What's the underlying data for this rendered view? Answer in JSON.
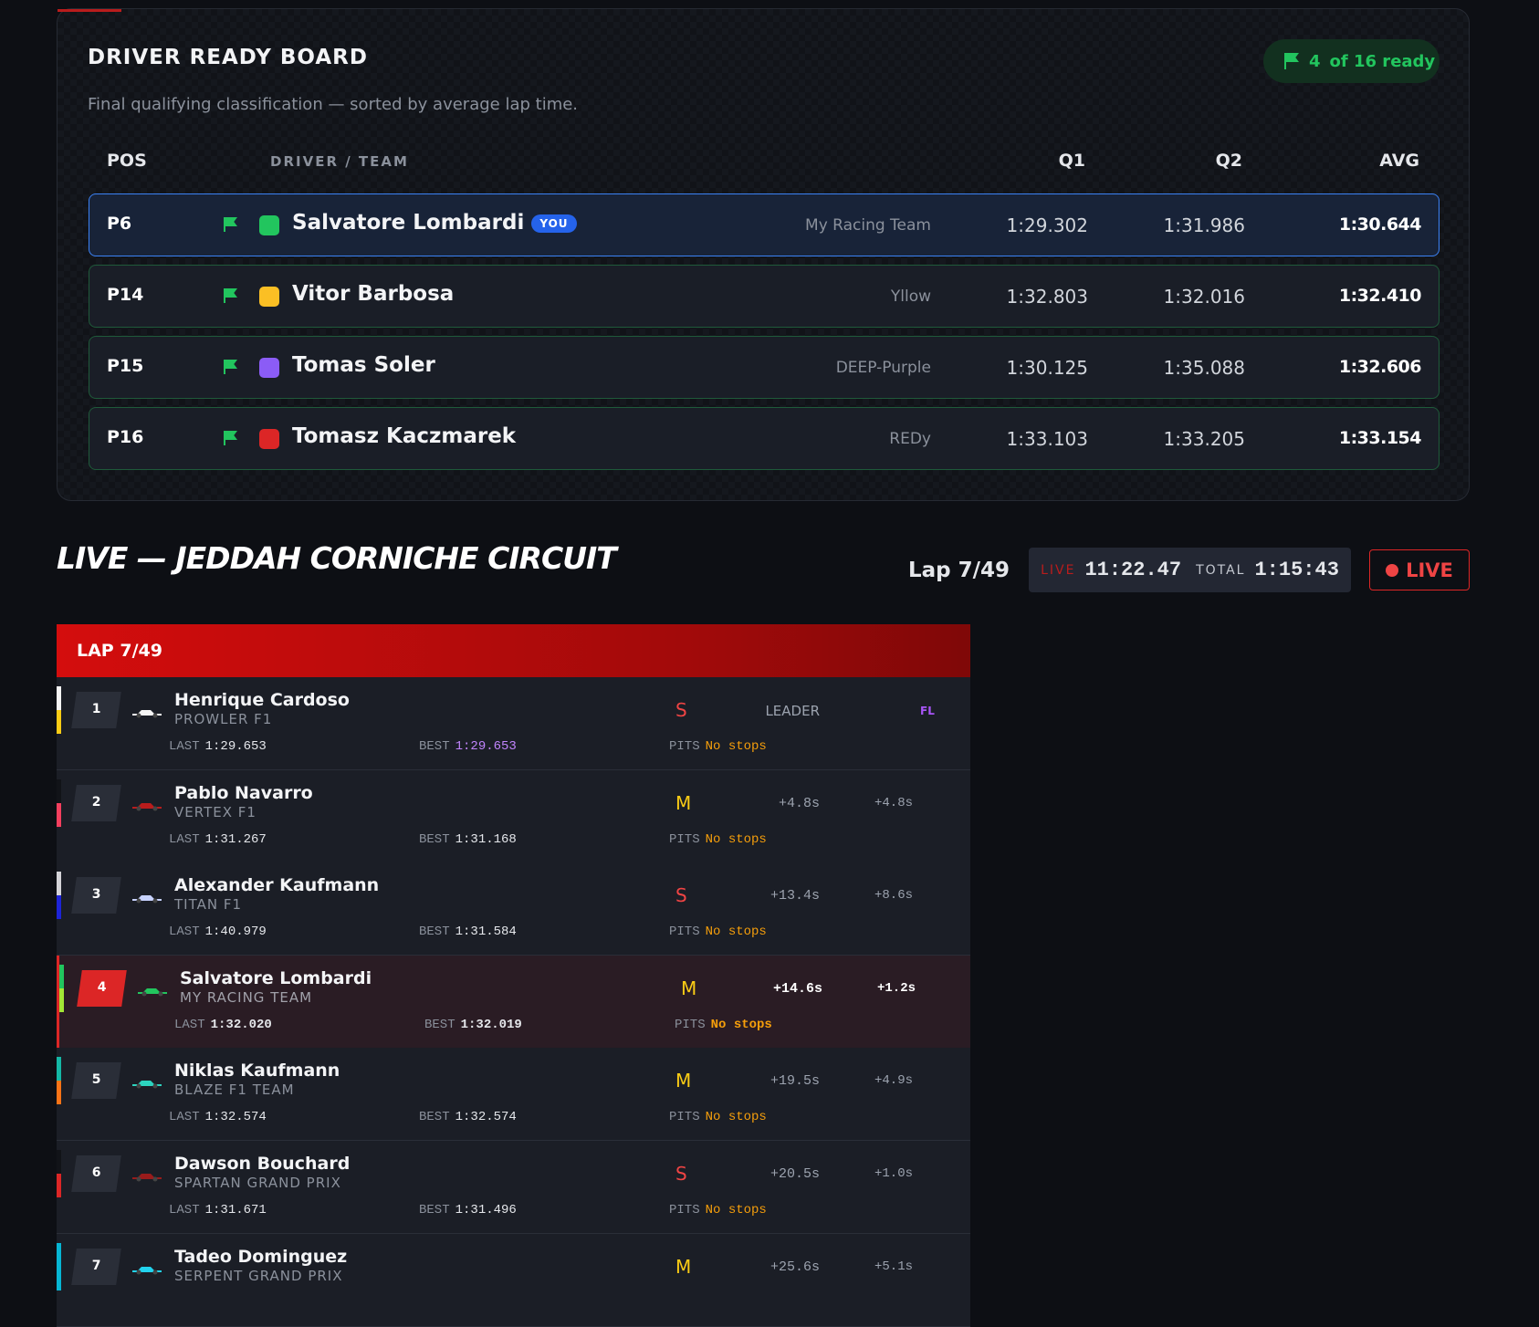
{
  "board": {
    "title": "DRIVER READY BOARD",
    "subtitle": "Final qualifying classification — sorted by average lap time.",
    "ready": {
      "count": "4",
      "text": "of 16 ready"
    },
    "columns": {
      "pos": "POS",
      "driver": "DRIVER / TEAM",
      "q1": "Q1",
      "q2": "Q2",
      "avg": "AVG"
    },
    "rows": [
      {
        "pos": "P6",
        "color": "#22c55e",
        "driver": "Salvatore Lombardi",
        "badge": "YOU",
        "team": "My Racing Team",
        "q1": "1:29.302",
        "q2": "1:31.986",
        "avg": "1:30.644"
      },
      {
        "pos": "P14",
        "color": "#fbbf24",
        "driver": "Vitor Barbosa",
        "team": "Yllow",
        "q1": "1:32.803",
        "q2": "1:32.016",
        "avg": "1:32.410"
      },
      {
        "pos": "P15",
        "color": "#8b5cf6",
        "driver": "Tomas Soler",
        "team": "DEEP-Purple",
        "q1": "1:30.125",
        "q2": "1:35.088",
        "avg": "1:32.606"
      },
      {
        "pos": "P16",
        "color": "#dc2626",
        "driver": "Tomasz Kaczmarek",
        "team": "REDy",
        "q1": "1:33.103",
        "q2": "1:33.205",
        "avg": "1:33.154"
      }
    ]
  },
  "live": {
    "title": "LIVE — JEDDAH CORNICHE CIRCUIT",
    "lap": "Lap 7/49",
    "timer": {
      "live_label": "LIVE",
      "live": "11:22.47",
      "total_label": "TOTAL",
      "total": "1:15:43"
    },
    "button": "LIVE"
  },
  "timing": {
    "header": "LAP 7/49",
    "labels": {
      "last": "LAST",
      "best": "BEST",
      "pits": "PITS"
    },
    "rows": [
      {
        "pos": "1",
        "driver": "Henrique Cardoso",
        "team": "PROWLER F1",
        "stripe": [
          "#f5f5f5",
          "#facc15"
        ],
        "car": "#f5f5f5",
        "tyre": "S",
        "gap": "LEADER",
        "fl": "FL",
        "last": "1:29.653",
        "best": "1:29.653",
        "pits": "No stops"
      },
      {
        "pos": "2",
        "driver": "Pablo Navarro",
        "team": "VERTEX F1",
        "stripe": [
          "#111318",
          "#f43f5e"
        ],
        "car": "#b91c1c",
        "tyre": "M",
        "gap": "+4.8s",
        "interval": "+4.8s",
        "last": "1:31.267",
        "best": "1:31.168",
        "pits": "No stops"
      },
      {
        "pos": "3",
        "driver": "Alexander Kaufmann",
        "team": "TITAN F1",
        "stripe": [
          "#d4d4d8",
          "#1d24d8"
        ],
        "car": "#c7d2fe",
        "tyre": "S",
        "gap": "+13.4s",
        "interval": "+8.6s",
        "last": "1:40.979",
        "best": "1:31.584",
        "pits": "No stops"
      },
      {
        "pos": "4",
        "driver": "Salvatore Lombardi",
        "team": "MY RACING TEAM",
        "stripe": [
          "#22c55e",
          "#a3e635"
        ],
        "car": "#22c55e",
        "tyre": "M",
        "gap": "+14.6s",
        "interval": "+1.2s",
        "last": "1:32.020",
        "best": "1:32.019",
        "pits": "No stops"
      },
      {
        "pos": "5",
        "driver": "Niklas Kaufmann",
        "team": "BLAZE F1 TEAM",
        "stripe": [
          "#14b8a6",
          "#f97316"
        ],
        "car": "#2dd4bf",
        "tyre": "M",
        "gap": "+19.5s",
        "interval": "+4.9s",
        "last": "1:32.574",
        "best": "1:32.574",
        "pits": "No stops"
      },
      {
        "pos": "6",
        "driver": "Dawson Bouchard",
        "team": "SPARTAN GRAND PRIX",
        "stripe": [
          "#111318",
          "#dc2626"
        ],
        "car": "#991b1b",
        "tyre": "S",
        "gap": "+20.5s",
        "interval": "+1.0s",
        "last": "1:31.671",
        "best": "1:31.496",
        "pits": "No stops"
      },
      {
        "pos": "7",
        "driver": "Tadeo Dominguez",
        "team": "SERPENT GRAND PRIX",
        "stripe": [
          "#06b6d4",
          "#06b6d4"
        ],
        "car": "#22d3ee",
        "tyre": "M",
        "gap": "+25.6s",
        "interval": "+5.1s"
      }
    ]
  }
}
